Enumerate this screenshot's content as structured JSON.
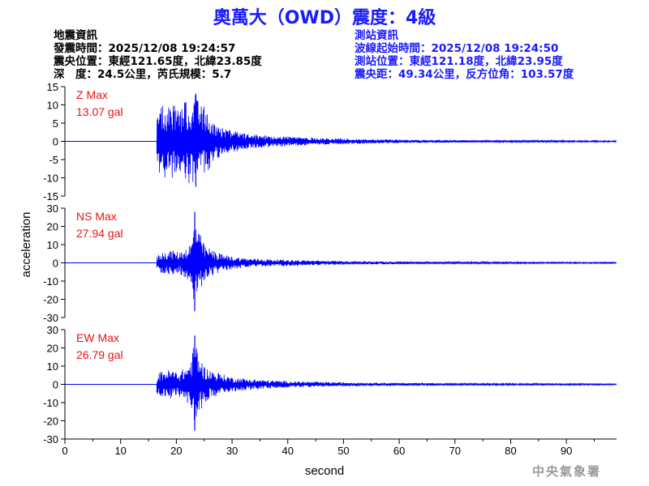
{
  "header": {
    "title": "奧萬大（OWD）震度：4級",
    "quake_info": [
      "地震資訊",
      "發震時間：2025/12/08 19:24:57",
      "震央位置：東經121.65度，北緯23.85度",
      "深　度：24.5公里，芮氏規模：5.7"
    ],
    "station_info": [
      "測站資訊",
      "波線起始時間：2025/12/08 19:24:50",
      "測站位置：東經121.18度，北緯23.95度",
      "震央距：49.34公里，反方位角：103.57度"
    ]
  },
  "footer": {
    "agency": "中央氣象署"
  },
  "colors": {
    "trace": "#0000ff",
    "label": "#ee1111",
    "title": "#1a1aff"
  },
  "chart_data": [
    {
      "type": "line",
      "component": "Z",
      "max_label": "Z Max",
      "max_value": "13.07 gal",
      "ylim": [
        -15,
        15
      ],
      "yticks": [
        15,
        10,
        5,
        0,
        -5,
        -10,
        -15
      ],
      "ylabel": "acceleration",
      "xlim": [
        0,
        99
      ],
      "onset": 16.5,
      "envelope": [
        [
          16.5,
          6
        ],
        [
          17.5,
          12
        ],
        [
          18.5,
          10
        ],
        [
          19.5,
          10
        ],
        [
          20.5,
          8.5
        ],
        [
          21.5,
          11
        ],
        [
          22.5,
          12
        ],
        [
          23.5,
          13.07
        ],
        [
          24.5,
          10
        ],
        [
          25.5,
          9
        ],
        [
          26.5,
          6
        ],
        [
          28,
          4
        ],
        [
          30,
          3
        ],
        [
          33,
          2
        ],
        [
          36,
          1.7
        ],
        [
          40,
          1.4
        ],
        [
          45,
          1
        ],
        [
          52,
          0.7
        ],
        [
          60,
          0.5
        ],
        [
          70,
          0.35
        ],
        [
          80,
          0.25
        ],
        [
          99,
          0.15
        ]
      ]
    },
    {
      "type": "line",
      "component": "NS",
      "max_label": "NS Max",
      "max_value": "27.94 gal",
      "ylim": [
        -30,
        30
      ],
      "yticks": [
        30,
        20,
        10,
        0,
        -10,
        -20,
        -30
      ],
      "ylabel": "acceleration",
      "xlim": [
        0,
        99
      ],
      "onset": 16.5,
      "envelope": [
        [
          16.5,
          4
        ],
        [
          17.5,
          6
        ],
        [
          19,
          7
        ],
        [
          20.5,
          6
        ],
        [
          22,
          9
        ],
        [
          22.8,
          12
        ],
        [
          23.3,
          27.94
        ],
        [
          24,
          18
        ],
        [
          25,
          10
        ],
        [
          26,
          8
        ],
        [
          28,
          5
        ],
        [
          30,
          3.5
        ],
        [
          33,
          2.5
        ],
        [
          37,
          2
        ],
        [
          42,
          1.5
        ],
        [
          50,
          1
        ],
        [
          60,
          0.7
        ],
        [
          70,
          0.5
        ],
        [
          85,
          0.35
        ],
        [
          99,
          0.3
        ]
      ]
    },
    {
      "type": "line",
      "component": "EW",
      "max_label": "EW Max",
      "max_value": "26.79 gal",
      "ylim": [
        -30,
        30
      ],
      "yticks": [
        30,
        20,
        10,
        0,
        -10,
        -20,
        -30
      ],
      "ylabel": "acceleration",
      "xlim": [
        0,
        99
      ],
      "xticks": [
        0,
        10,
        20,
        30,
        40,
        50,
        60,
        70,
        80,
        90
      ],
      "xlabel": "second",
      "onset": 16.5,
      "envelope": [
        [
          16.5,
          5
        ],
        [
          17.5,
          8
        ],
        [
          19,
          8
        ],
        [
          20.5,
          7
        ],
        [
          22,
          10
        ],
        [
          22.8,
          15
        ],
        [
          23.3,
          26.79
        ],
        [
          24,
          17
        ],
        [
          25,
          10
        ],
        [
          26,
          8
        ],
        [
          28,
          6
        ],
        [
          30,
          4
        ],
        [
          33,
          3
        ],
        [
          37,
          2.2
        ],
        [
          42,
          1.6
        ],
        [
          50,
          1.1
        ],
        [
          60,
          0.8
        ],
        [
          70,
          0.55
        ],
        [
          85,
          0.4
        ],
        [
          99,
          0.3
        ]
      ]
    }
  ]
}
